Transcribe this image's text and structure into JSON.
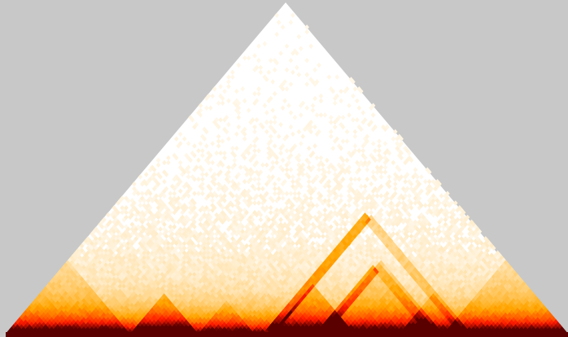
{
  "contact_map": {
    "colors": {
      "background": "#c8c8c8",
      "low": "#ffffff",
      "mid": "#ffa500",
      "high": "#ff1a00",
      "max": "#5a0000"
    },
    "domains": [
      {
        "start": 0.0,
        "end": 0.22,
        "strength": 0.55
      },
      {
        "start": 0.22,
        "end": 0.34,
        "strength": 0.85
      },
      {
        "start": 0.34,
        "end": 0.44,
        "strength": 0.35
      },
      {
        "start": 0.47,
        "end": 0.62,
        "strength": 0.9
      },
      {
        "start": 0.56,
        "end": 0.78,
        "strength": 0.6
      },
      {
        "start": 0.7,
        "end": 0.82,
        "strength": 0.55
      },
      {
        "start": 0.78,
        "end": 1.0,
        "strength": 0.5
      }
    ],
    "stripes": [
      {
        "anchor": 0.47,
        "to": 0.82,
        "strength": 0.8
      },
      {
        "anchor": 0.56,
        "to": 0.76,
        "strength": 0.7
      }
    ]
  }
}
